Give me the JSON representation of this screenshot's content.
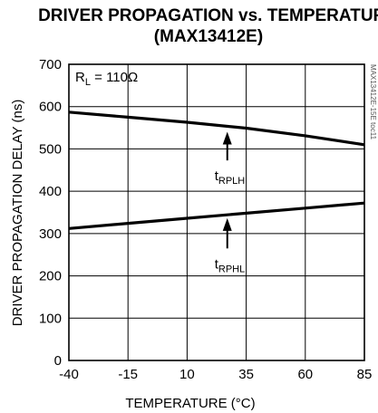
{
  "chart_data": {
    "type": "line",
    "title": "DRIVER PROPAGATION vs. TEMPERATURE",
    "subtitle": "(MAX13412E)",
    "xlabel": "TEMPERATURE (°C)",
    "ylabel": "DRIVER PROPAGATION DELAY (ns)",
    "xlim": [
      -40,
      85
    ],
    "ylim": [
      0,
      700
    ],
    "xticks": [
      -40,
      -15,
      10,
      35,
      60,
      85
    ],
    "yticks": [
      0,
      100,
      200,
      300,
      400,
      500,
      600,
      700
    ],
    "grid": true,
    "condition": {
      "prefix": "R",
      "subscript": "L",
      "suffix": " = 110Ω"
    },
    "series": [
      {
        "name_main": "t",
        "name_sub": "RPLH",
        "x": [
          -40,
          -15,
          10,
          35,
          60,
          85
        ],
        "values": [
          587,
          575,
          563,
          549,
          531,
          510
        ]
      },
      {
        "name_main": "t",
        "name_sub": "RPHL",
        "x": [
          -40,
          -15,
          10,
          35,
          60,
          85
        ],
        "values": [
          312,
          324,
          336,
          348,
          360,
          372
        ]
      }
    ],
    "annotations": [
      {
        "series": 0,
        "arrow_x": 27,
        "arrow_tip_y": 549,
        "label_y": 430
      },
      {
        "series": 1,
        "arrow_x": 27,
        "arrow_tip_y": 345,
        "label_y": 222
      }
    ],
    "watermark": "MAX13412E-15E toc11"
  }
}
